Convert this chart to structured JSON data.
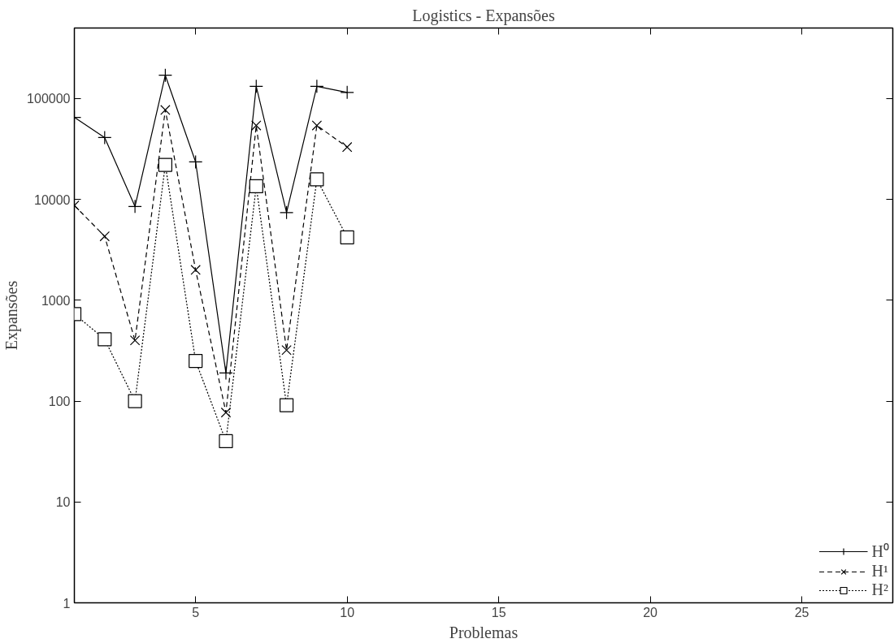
{
  "chart_data": {
    "type": "line",
    "title": "Logistics - Expansões",
    "xlabel": "Problemas",
    "ylabel": "Expansões",
    "x": [
      1,
      2,
      3,
      4,
      5,
      6,
      7,
      8,
      9,
      10
    ],
    "series": [
      {
        "name": "H⁰",
        "color": "#000000",
        "marker": "cross",
        "line_style": "solid",
        "values": [
          65000,
          41000,
          8500,
          170000,
          23500,
          190,
          132000,
          7400,
          132000,
          115000
        ]
      },
      {
        "name": "H¹",
        "color": "#000000",
        "marker": "x",
        "line_style": "dashed",
        "values": [
          8700,
          4300,
          400,
          77000,
          2000,
          77,
          54000,
          320,
          54000,
          33000
        ]
      },
      {
        "name": "H²",
        "color": "#000000",
        "marker": "square",
        "line_style": "dotted",
        "values": [
          730,
          410,
          100,
          22000,
          250,
          40,
          13500,
          91,
          15800,
          4200
        ]
      }
    ],
    "log": "y",
    "grid": false,
    "legend": "bottom right",
    "xlim": [
      1,
      28
    ],
    "xticks": [
      5,
      10,
      15,
      20,
      25
    ],
    "ylim": [
      1,
      500000
    ],
    "yticks": [
      1,
      10,
      100,
      1000,
      10000,
      100000
    ]
  }
}
